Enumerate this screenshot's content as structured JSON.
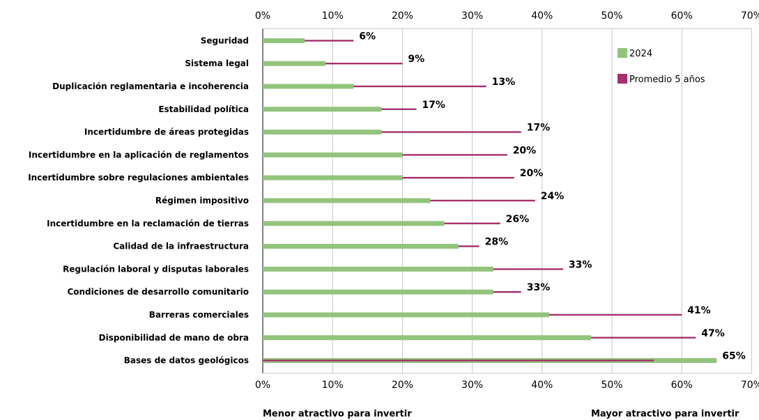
{
  "chart_data": {
    "type": "bar",
    "orientation": "horizontal",
    "categories": [
      "Seguridad",
      "Sistema legal",
      "Duplicación reglamentaria e incoherencia",
      "Estabilidad política",
      "Incertidumbre de áreas protegidas",
      "Incertidumbre en la aplicación de reglamentos",
      "Incertidumbre sobre regulaciones ambientales",
      "Régimen impositivo",
      "Incertidumbre en la reclamación de tierras",
      "Calidad de la infraestructura",
      "Regulación laboral y disputas laborales",
      "Condiciones de desarrollo comunitario",
      "Barreras comerciales",
      "Disponibilidad de mano de obra",
      "Bases de datos geológicos"
    ],
    "series": [
      {
        "name": "2024",
        "color": "#93c47d",
        "values": [
          6,
          9,
          13,
          17,
          17,
          20,
          20,
          24,
          26,
          28,
          33,
          33,
          41,
          47,
          65
        ]
      },
      {
        "name": "Promedio 5 años",
        "color": "#a8306e",
        "values": [
          13,
          20,
          32,
          22,
          37,
          35,
          36,
          39,
          34,
          31,
          43,
          37,
          60,
          62,
          56
        ]
      }
    ],
    "data_labels": [
      "6%",
      "9%",
      "13%",
      "17%",
      "17%",
      "20%",
      "20%",
      "24%",
      "26%",
      "28%",
      "33%",
      "33%",
      "41%",
      "47%",
      "65%"
    ],
    "xaxis": {
      "ticks": [
        "0%",
        "10%",
        "20%",
        "30%",
        "40%",
        "50%",
        "60%",
        "70%"
      ],
      "xlim": [
        0,
        70
      ]
    },
    "grid": true,
    "legend": "top-right",
    "annotations": {
      "left": "Menor atractivo para invertir",
      "right": "Mayor atractivo para invertir"
    }
  }
}
